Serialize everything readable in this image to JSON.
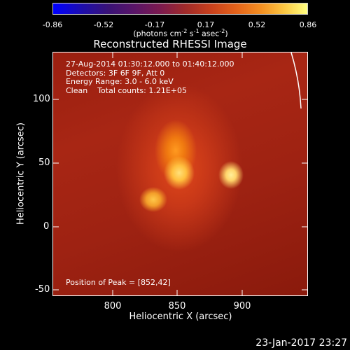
{
  "colorbar": {
    "ticks": [
      "-0.86",
      "-0.52",
      "-0.17",
      "0.17",
      "0.52",
      "0.86"
    ],
    "units_prefix": "(photons cm",
    "units_exp1": "-2",
    "units_mid1": " s",
    "units_exp2": "-1",
    "units_mid2": " asec",
    "units_exp3": "-2",
    "units_suffix": ")"
  },
  "plot": {
    "title": "Reconstructed RHESSI Image",
    "info_lines": [
      "27-Aug-2014 01:30:12.000 to 01:40:12.000",
      "Detectors: 3F 6F 9F, Att 0",
      "Energy Range: 3.0 - 6.0 keV",
      "Clean    Total counts: 1.21E+05"
    ],
    "peak_text": "Position of Peak = [852,42]",
    "xlabel": "Heliocentric X (arcsec)",
    "ylabel": "Heliocentric Y (arcsec)",
    "xticks": [
      "800",
      "850",
      "900"
    ],
    "yticks": [
      "100",
      "50",
      "0",
      "-50"
    ]
  },
  "footer": {
    "datestamp": "23-Jan-2017 23:27"
  },
  "chart_data": {
    "type": "heatmap",
    "title": "Reconstructed RHESSI Image",
    "xlabel": "Heliocentric X (arcsec)",
    "ylabel": "Heliocentric Y (arcsec)",
    "xlim": [
      757,
      947
    ],
    "ylim": [
      -55,
      130
    ],
    "colorbar_range": [
      -0.86,
      0.86
    ],
    "peak": [
      852,
      42
    ],
    "colors": {
      "low": "#0000ff",
      "mid": "#c8401d",
      "high": "#ffff80"
    }
  }
}
